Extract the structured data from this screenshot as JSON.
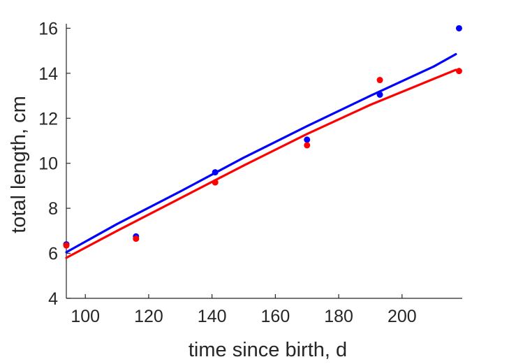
{
  "chart_data": {
    "type": "scatter",
    "title": "",
    "xlabel": "time since birth, d",
    "ylabel": "total length, cm",
    "xlim": [
      94,
      219
    ],
    "ylim": [
      4,
      16.2
    ],
    "xticks": [
      100,
      120,
      140,
      160,
      180,
      200
    ],
    "yticks": [
      4,
      6,
      8,
      10,
      12,
      14,
      16
    ],
    "grid": false,
    "legend": "none",
    "series": [
      {
        "kind": "points",
        "color": "#0000ff",
        "x": [
          94,
          116,
          141,
          170,
          193,
          218
        ],
        "y": [
          6.4,
          6.75,
          9.6,
          11.05,
          13.05,
          16.0
        ]
      },
      {
        "kind": "points",
        "color": "#ff0000",
        "x": [
          94,
          116,
          141,
          170,
          193,
          218
        ],
        "y": [
          6.35,
          6.65,
          9.15,
          10.8,
          13.7,
          14.1
        ]
      },
      {
        "kind": "line",
        "color": "#0000ff",
        "x": [
          94,
          110,
          130,
          150,
          170,
          190,
          210,
          217
        ],
        "y": [
          6.05,
          7.3,
          8.75,
          10.25,
          11.65,
          13.0,
          14.3,
          14.85
        ]
      },
      {
        "kind": "line",
        "color": "#ff0000",
        "x": [
          94,
          110,
          130,
          150,
          170,
          190,
          210,
          217
        ],
        "y": [
          5.8,
          7.0,
          8.45,
          9.9,
          11.3,
          12.6,
          13.75,
          14.15
        ]
      }
    ]
  }
}
